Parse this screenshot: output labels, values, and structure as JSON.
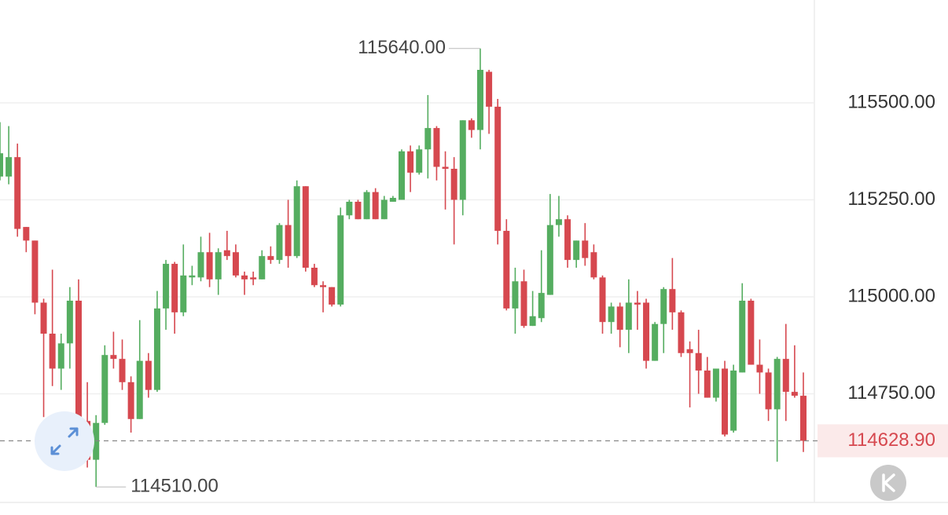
{
  "chart_data": {
    "type": "candlestick",
    "up_color": "#55ad60",
    "down_color": "#d6484f",
    "grid": true,
    "ylim": [
      114470,
      115765
    ],
    "yticks": [
      {
        "value": 114750,
        "label": "114750.00"
      },
      {
        "value": 115000,
        "label": "115000.00"
      },
      {
        "value": 115250,
        "label": "115250.00"
      },
      {
        "value": 115500,
        "label": "115500.00"
      }
    ],
    "open": [
      115310,
      115310,
      115360,
      115180,
      115145,
      114985,
      114905,
      114815,
      114880,
      114990,
      114680,
      114580,
      114675,
      114850,
      114840,
      114780,
      114685,
      114835,
      114760,
      114970,
      115085,
      114960,
      115050,
      115050,
      115115,
      115045,
      115120,
      115115,
      115055,
      115050,
      115045,
      115105,
      115095,
      115185,
      115105,
      115285,
      115075,
      115030,
      115025,
      114980,
      115210,
      115245,
      115200,
      115270,
      115200,
      115245,
      115250,
      115375,
      115320,
      115380,
      115435,
      115335,
      115330,
      115250,
      115455,
      115430,
      115580,
      115490,
      115170,
      114970,
      115040,
      114925,
      114945,
      115005,
      115185,
      115200,
      115095,
      115145,
      115115,
      115050,
      114935,
      114975,
      114915,
      114985,
      114985,
      114835,
      114930,
      115020,
      114960,
      114865,
      114855,
      114810,
      114740,
      114815,
      114655,
      114805,
      114990,
      114825,
      114805,
      114710,
      114840,
      114755,
      114745
    ],
    "high": [
      115450,
      115440,
      115395,
      115180,
      115145,
      114995,
      115070,
      114905,
      115025,
      115045,
      114780,
      114695,
      114875,
      114910,
      114890,
      114795,
      114940,
      114855,
      115015,
      115095,
      115090,
      115135,
      115080,
      115155,
      115165,
      115125,
      115170,
      115135,
      115065,
      115065,
      115120,
      115130,
      115190,
      115250,
      115300,
      115285,
      115085,
      115040,
      115025,
      115230,
      115250,
      115250,
      115275,
      115280,
      115260,
      115260,
      115380,
      115390,
      115390,
      115520,
      115440,
      115375,
      115360,
      115455,
      115460,
      115640,
      115585,
      115510,
      115200,
      115075,
      115070,
      115015,
      115120,
      115265,
      115260,
      115210,
      115145,
      115190,
      115135,
      115055,
      114985,
      114985,
      115045,
      115015,
      114995,
      114935,
      115025,
      115100,
      114965,
      114885,
      114915,
      114845,
      114815,
      114835,
      114825,
      115035,
      114995,
      114890,
      114815,
      114845,
      114930,
      114875,
      114805
    ],
    "low": [
      115300,
      115290,
      115155,
      115115,
      114955,
      114690,
      114770,
      114760,
      114815,
      114630,
      114560,
      114510,
      114670,
      114815,
      114760,
      114650,
      114685,
      114740,
      114755,
      114915,
      114905,
      114950,
      115030,
      115040,
      115025,
      115005,
      115095,
      115050,
      115005,
      115030,
      115045,
      115085,
      115085,
      115075,
      115100,
      115065,
      115025,
      114960,
      114975,
      114975,
      115200,
      115200,
      115200,
      115200,
      115200,
      115245,
      115250,
      115270,
      115315,
      115305,
      115300,
      115225,
      115135,
      115210,
      115410,
      115380,
      115420,
      115135,
      114965,
      114905,
      114920,
      114925,
      114935,
      115005,
      115155,
      115075,
      115075,
      115080,
      115045,
      114905,
      114905,
      114870,
      114855,
      114915,
      114815,
      114835,
      114855,
      114915,
      114845,
      114715,
      114750,
      114740,
      114730,
      114640,
      114650,
      114805,
      114825,
      114750,
      114680,
      114575,
      114680,
      114740,
      114600
    ],
    "close": [
      115370,
      115360,
      115175,
      115145,
      114985,
      114905,
      114815,
      114880,
      114990,
      114680,
      114580,
      114675,
      114850,
      114840,
      114780,
      114685,
      114835,
      114760,
      114970,
      115085,
      114960,
      115055,
      115055,
      115115,
      115045,
      115115,
      115105,
      115055,
      115045,
      115045,
      115105,
      115095,
      115185,
      115105,
      115285,
      115075,
      115030,
      115025,
      114980,
      115210,
      115245,
      115200,
      115270,
      115200,
      115250,
      115255,
      115375,
      115320,
      115380,
      115435,
      115335,
      115330,
      115250,
      115455,
      115430,
      115585,
      115490,
      115170,
      114970,
      115040,
      114925,
      114950,
      115010,
      115185,
      115200,
      115095,
      115145,
      115100,
      115050,
      114935,
      114975,
      114915,
      114985,
      114980,
      114835,
      114930,
      115020,
      114960,
      114855,
      114855,
      114810,
      114740,
      114815,
      114645,
      114810,
      114990,
      114825,
      114805,
      114710,
      114840,
      114755,
      114745,
      114628.9
    ],
    "high_label": {
      "value": 115640,
      "label": "115640.00"
    },
    "low_label": {
      "value": 114510,
      "label": "114510.00"
    },
    "last_price": {
      "value": 114628.9,
      "label": "114628.90"
    }
  }
}
